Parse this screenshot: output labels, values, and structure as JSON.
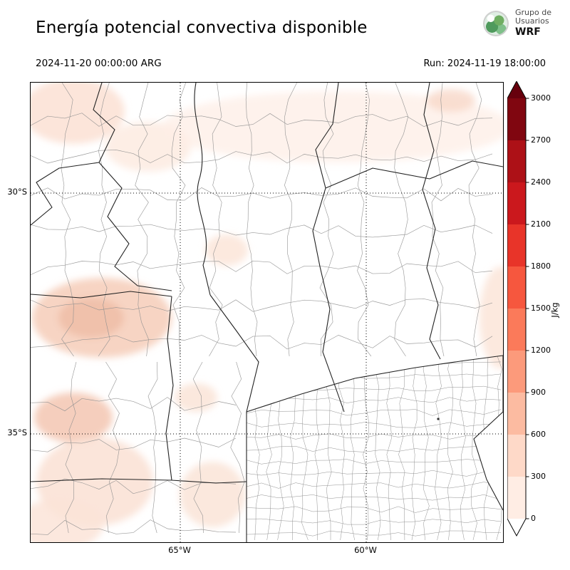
{
  "header": {
    "title": "Energía potencial convectiva disponible",
    "logo": {
      "line1": "Grupo de",
      "line2": "Usuarios",
      "line3": "WRF"
    }
  },
  "subheader": {
    "valid_time": "2024-11-20 00:00:00 ARG",
    "run_time": "Run: 2024-11-19 18:00:00"
  },
  "map": {
    "lat_labels": [
      {
        "text": "30°S"
      },
      {
        "text": "35°S"
      }
    ],
    "lon_labels": [
      {
        "text": "65°W"
      },
      {
        "text": "60°W"
      }
    ]
  },
  "colorbar": {
    "unit": "J/kg",
    "ticks_top_to_bottom": [
      "3000",
      "2700",
      "2400",
      "2100",
      "1800",
      "1500",
      "1200",
      "900",
      "600",
      "300",
      "0"
    ],
    "segments_top_to_bottom": [
      "#800610",
      "#ad1117",
      "#cb181d",
      "#e83429",
      "#f6573e",
      "#fb7a5a",
      "#fc9a7b",
      "#fcbba1",
      "#fed9c8",
      "#ffede4"
    ],
    "over_color": "#67000d",
    "under_color": "#ffffff",
    "shading_light": "#ffede4",
    "shading_medium": "#fed9c8"
  }
}
